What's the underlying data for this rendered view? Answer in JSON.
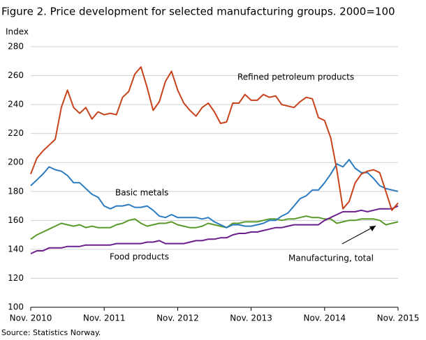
{
  "chart_data": {
    "type": "line",
    "title": "Figure 2. Price development for selected manufacturing groups. 2000=100",
    "y_label": "Index",
    "source": "Source: Statistics Norway.",
    "categories": [
      "Nov. 2010",
      null,
      null,
      null,
      null,
      null,
      null,
      null,
      null,
      null,
      null,
      null,
      "Nov. 2011",
      null,
      null,
      null,
      null,
      null,
      null,
      null,
      null,
      null,
      null,
      null,
      "Nov. 2012",
      null,
      null,
      null,
      null,
      null,
      null,
      null,
      null,
      null,
      null,
      null,
      "Nov. 2013",
      null,
      null,
      null,
      null,
      null,
      null,
      null,
      null,
      null,
      null,
      null,
      "Nov. 2014",
      null,
      null,
      null,
      null,
      null,
      null,
      null,
      null,
      null,
      null,
      null,
      "Nov. 2015"
    ],
    "ylim": [
      100,
      280
    ],
    "yticks": [
      100,
      120,
      140,
      160,
      180,
      200,
      220,
      240,
      260,
      280
    ],
    "grid": true,
    "series": [
      {
        "name": "Refined  petroleum  products",
        "color": "#c8421c",
        "values": [
          192,
          203,
          208,
          212,
          216,
          238,
          250,
          238,
          234,
          238,
          230,
          235,
          233,
          234,
          233,
          245,
          249,
          261,
          266,
          252,
          236,
          242,
          256,
          263,
          250,
          241,
          236,
          232,
          238,
          241,
          235,
          227,
          228,
          241,
          241,
          247,
          243,
          243,
          247,
          245,
          246,
          240,
          239,
          238,
          242,
          245,
          244,
          231,
          229,
          217,
          195,
          168,
          173,
          186,
          192,
          194,
          195,
          193,
          180,
          167,
          172
        ]
      },
      {
        "name": "Basic  metals",
        "color": "#2b7bc0",
        "values": [
          184,
          188,
          192,
          197,
          195,
          194,
          191,
          186,
          186,
          182,
          178,
          176,
          170,
          168,
          170,
          170,
          171,
          169,
          169,
          170,
          167,
          163,
          162,
          164,
          162,
          162,
          162,
          162,
          161,
          162,
          159,
          157,
          155,
          157,
          157,
          156,
          156,
          157,
          158,
          160,
          160,
          163,
          165,
          170,
          175,
          177,
          181,
          181,
          186,
          192,
          199,
          197,
          202,
          196,
          193,
          193,
          189,
          184,
          182,
          181,
          180
        ]
      },
      {
        "name": "Manufacturing,  total",
        "color": "#5a9a2a",
        "values": [
          147,
          150,
          152,
          154,
          156,
          158,
          157,
          156,
          157,
          155,
          156,
          155,
          155,
          155,
          157,
          158,
          160,
          161,
          158,
          156,
          157,
          158,
          158,
          159,
          157,
          156,
          155,
          155,
          156,
          158,
          157,
          156,
          155,
          158,
          158,
          159,
          159,
          159,
          160,
          161,
          161,
          160,
          161,
          161,
          162,
          163,
          162,
          162,
          161,
          161,
          158,
          159,
          160,
          160,
          161,
          161,
          161,
          160,
          157,
          158,
          159
        ]
      },
      {
        "name": "Food products",
        "color": "#6b1e8c",
        "values": [
          137,
          139,
          139,
          141,
          141,
          141,
          142,
          142,
          142,
          143,
          143,
          143,
          143,
          143,
          144,
          144,
          144,
          144,
          144,
          145,
          145,
          146,
          144,
          144,
          144,
          144,
          145,
          146,
          146,
          147,
          147,
          148,
          148,
          150,
          151,
          151,
          152,
          152,
          153,
          154,
          155,
          155,
          156,
          157,
          157,
          157,
          157,
          157,
          160,
          162,
          164,
          166,
          166,
          166,
          167,
          166,
          167,
          168,
          168,
          168,
          170
        ]
      }
    ]
  }
}
